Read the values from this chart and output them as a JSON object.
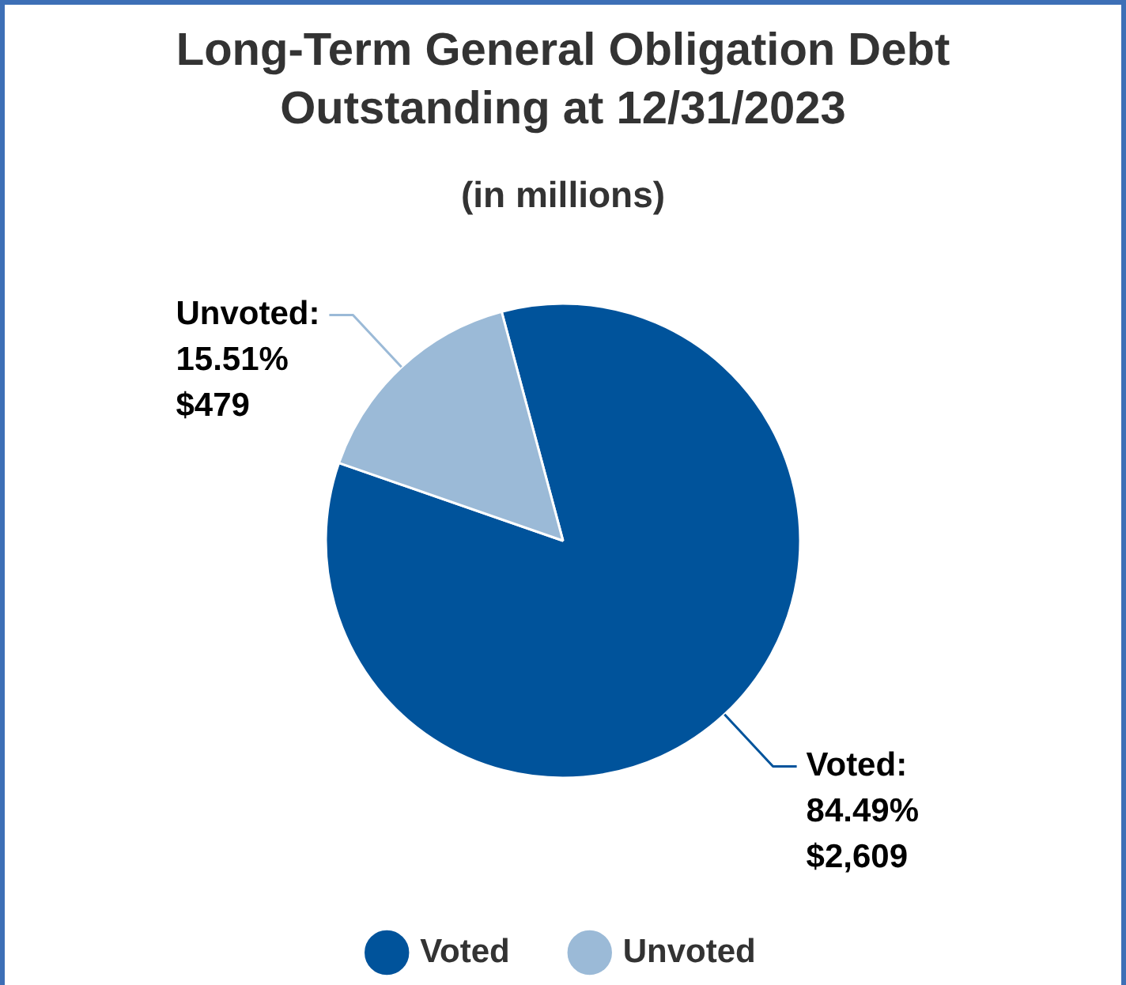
{
  "chart_data": {
    "type": "pie",
    "title": "Long-Term General Obligation Debt Outstanding at 12/31/2023",
    "subtitle": "(in millions)",
    "categories": [
      "Voted",
      "Unvoted"
    ],
    "values": [
      2609,
      479
    ],
    "colors": [
      "#00539b",
      "#9bbad7"
    ],
    "value_labels": [
      "Voted:\n84.49%\n$2,609",
      "Unvoted:\n15.51%\n$479"
    ],
    "legend": "bottom"
  }
}
